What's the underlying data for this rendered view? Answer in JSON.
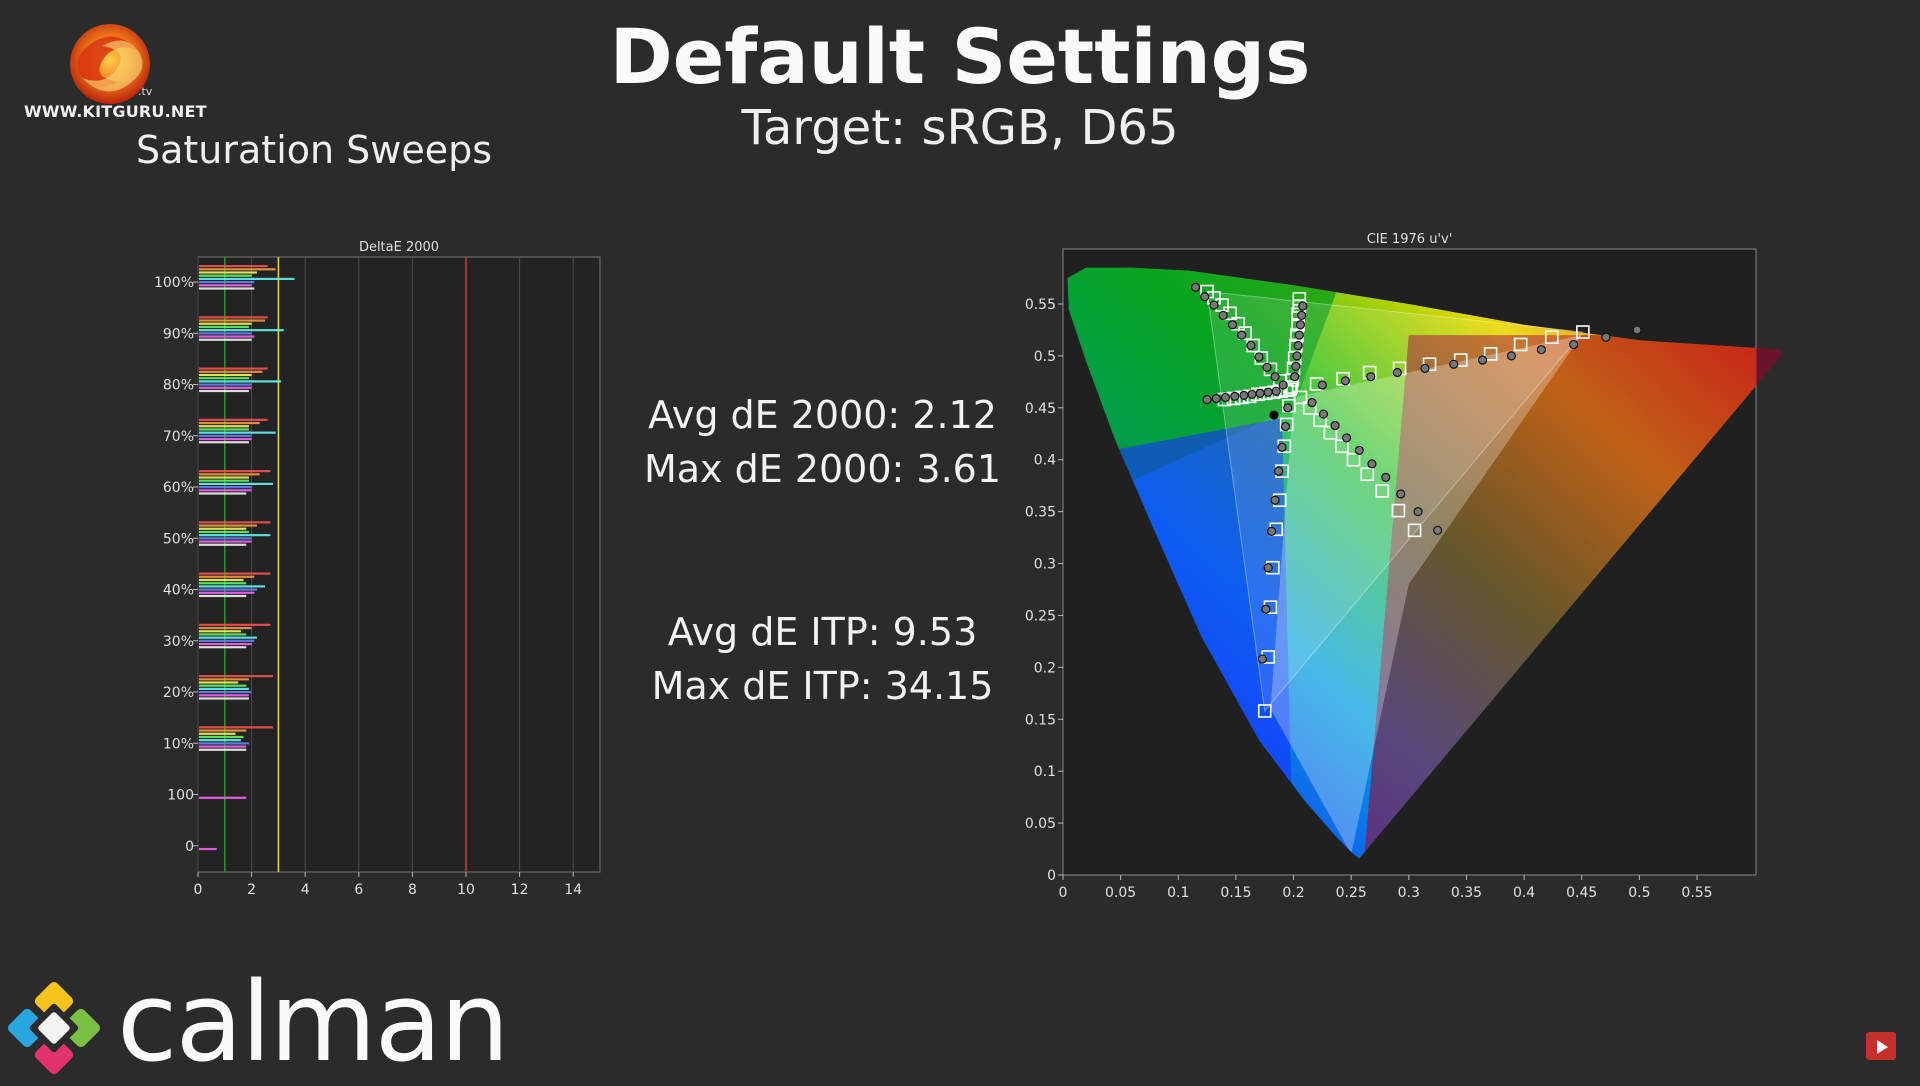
{
  "header": {
    "logo_text": "WWW.KITGURU.NET",
    "logo_suffix": ".tv",
    "section": "Saturation Sweeps",
    "title": "Default Settings",
    "subtitle": "Target: sRGB, D65"
  },
  "stats": {
    "avg_de2000": "Avg dE 2000: 2.12",
    "max_de2000": "Max dE 2000: 3.61",
    "avg_itp": "Avg dE ITP: 9.53",
    "max_itp": "Max dE ITP: 34.15"
  },
  "footer": {
    "brand": "calman"
  },
  "colors": {
    "background": "#2b2b2b",
    "threshold_green": "#2e8b2e",
    "threshold_yellow": "#e6d11e",
    "threshold_red": "#d4303a"
  },
  "chart_data": [
    {
      "type": "bar",
      "title": "DeltaE 2000",
      "orientation": "horizontal",
      "xlim": [
        0,
        15
      ],
      "xticks": [
        0,
        2,
        4,
        6,
        8,
        10,
        12,
        14
      ],
      "threshold_lines": [
        1,
        3,
        10
      ],
      "groups": [
        "100%",
        "90%",
        "80%",
        "70%",
        "60%",
        "50%",
        "40%",
        "30%",
        "20%",
        "10%",
        "100",
        "0"
      ],
      "series_colors": [
        "#ff5555",
        "#ffa040",
        "#ffff66",
        "#66ff66",
        "#66ffff",
        "#6688ff",
        "#ff66ff",
        "#ffffff"
      ],
      "values": [
        [
          2.6,
          2.9,
          2.2,
          2.0,
          3.6,
          2.1,
          2.0,
          2.1
        ],
        [
          2.6,
          2.5,
          2.0,
          1.9,
          3.2,
          2.0,
          2.1,
          2.0
        ],
        [
          2.6,
          2.4,
          2.0,
          1.9,
          3.1,
          2.0,
          2.0,
          1.9
        ],
        [
          2.6,
          2.3,
          1.9,
          1.9,
          2.9,
          2.0,
          2.0,
          1.9
        ],
        [
          2.7,
          2.3,
          1.9,
          1.9,
          2.8,
          2.0,
          2.0,
          1.8
        ],
        [
          2.7,
          2.2,
          1.8,
          1.9,
          2.7,
          2.0,
          2.0,
          1.8
        ],
        [
          2.7,
          2.1,
          1.7,
          1.8,
          2.5,
          2.2,
          2.1,
          1.8
        ],
        [
          2.7,
          2.0,
          1.6,
          1.8,
          2.2,
          2.1,
          2.0,
          1.8
        ],
        [
          2.8,
          1.9,
          1.5,
          1.8,
          1.9,
          2.0,
          1.9,
          1.9
        ],
        [
          2.8,
          1.8,
          1.4,
          1.7,
          1.6,
          1.9,
          1.8,
          1.8
        ],
        [
          0,
          0,
          0,
          0,
          0,
          0,
          1.8,
          0
        ],
        [
          0,
          0,
          0,
          0,
          0,
          0,
          0.7,
          0
        ]
      ]
    },
    {
      "type": "scatter",
      "title": "CIE 1976 u'v'",
      "xlim": [
        0,
        0.6
      ],
      "ylim": [
        0,
        0.6
      ],
      "xticks": [
        "0",
        "0.05",
        "0.1",
        "0.15",
        "0.2",
        "0.25",
        "0.3",
        "0.35",
        "0.4",
        "0.45",
        "0.5",
        "0.55"
      ],
      "yticks": [
        "0",
        "0.05",
        "0.1",
        "0.15",
        "0.2",
        "0.25",
        "0.3",
        "0.35",
        "0.4",
        "0.45",
        "0.5",
        "0.55"
      ],
      "gamut_triangle": [
        [
          0.451,
          0.523
        ],
        [
          0.125,
          0.562
        ],
        [
          0.175,
          0.158
        ]
      ],
      "white_point": [
        0.198,
        0.468
      ],
      "targets": [
        [
          0.451,
          0.523
        ],
        [
          0.424,
          0.518
        ],
        [
          0.397,
          0.511
        ],
        [
          0.371,
          0.502
        ],
        [
          0.345,
          0.496
        ],
        [
          0.318,
          0.492
        ],
        [
          0.292,
          0.488
        ],
        [
          0.266,
          0.484
        ],
        [
          0.243,
          0.478
        ],
        [
          0.22,
          0.473
        ],
        [
          0.125,
          0.562
        ],
        [
          0.131,
          0.556
        ],
        [
          0.138,
          0.549
        ],
        [
          0.145,
          0.541
        ],
        [
          0.152,
          0.531
        ],
        [
          0.158,
          0.522
        ],
        [
          0.165,
          0.51
        ],
        [
          0.172,
          0.498
        ],
        [
          0.18,
          0.487
        ],
        [
          0.188,
          0.476
        ],
        [
          0.175,
          0.158
        ],
        [
          0.178,
          0.21
        ],
        [
          0.18,
          0.258
        ],
        [
          0.182,
          0.296
        ],
        [
          0.185,
          0.333
        ],
        [
          0.188,
          0.361
        ],
        [
          0.19,
          0.389
        ],
        [
          0.192,
          0.413
        ],
        [
          0.194,
          0.434
        ],
        [
          0.196,
          0.452
        ],
        [
          0.205,
          0.555
        ],
        [
          0.205,
          0.548
        ],
        [
          0.204,
          0.54
        ],
        [
          0.204,
          0.53
        ],
        [
          0.203,
          0.52
        ],
        [
          0.202,
          0.51
        ],
        [
          0.201,
          0.498
        ],
        [
          0.2,
          0.488
        ],
        [
          0.199,
          0.477
        ],
        [
          0.198,
          0.47
        ],
        [
          0.14,
          0.458
        ],
        [
          0.148,
          0.459
        ],
        [
          0.155,
          0.46
        ],
        [
          0.162,
          0.461
        ],
        [
          0.169,
          0.463
        ],
        [
          0.176,
          0.464
        ],
        [
          0.183,
          0.465
        ],
        [
          0.189,
          0.466
        ],
        [
          0.194,
          0.467
        ],
        [
          0.197,
          0.468
        ],
        [
          0.305,
          0.332
        ],
        [
          0.291,
          0.351
        ],
        [
          0.277,
          0.37
        ],
        [
          0.264,
          0.386
        ],
        [
          0.252,
          0.4
        ],
        [
          0.242,
          0.413
        ],
        [
          0.232,
          0.426
        ],
        [
          0.223,
          0.438
        ],
        [
          0.214,
          0.45
        ],
        [
          0.206,
          0.46
        ]
      ],
      "measured": [
        [
          0.498,
          0.525
        ],
        [
          0.471,
          0.518
        ],
        [
          0.443,
          0.511
        ],
        [
          0.415,
          0.506
        ],
        [
          0.389,
          0.5
        ],
        [
          0.364,
          0.496
        ],
        [
          0.339,
          0.492
        ],
        [
          0.314,
          0.488
        ],
        [
          0.29,
          0.484
        ],
        [
          0.267,
          0.48
        ],
        [
          0.245,
          0.476
        ],
        [
          0.225,
          0.472
        ],
        [
          0.115,
          0.566
        ],
        [
          0.123,
          0.557
        ],
        [
          0.131,
          0.549
        ],
        [
          0.139,
          0.539
        ],
        [
          0.147,
          0.53
        ],
        [
          0.155,
          0.52
        ],
        [
          0.163,
          0.51
        ],
        [
          0.17,
          0.499
        ],
        [
          0.177,
          0.489
        ],
        [
          0.184,
          0.48
        ],
        [
          0.191,
          0.472
        ],
        [
          0.173,
          0.208
        ],
        [
          0.176,
          0.256
        ],
        [
          0.178,
          0.296
        ],
        [
          0.181,
          0.331
        ],
        [
          0.184,
          0.361
        ],
        [
          0.187,
          0.389
        ],
        [
          0.19,
          0.412
        ],
        [
          0.193,
          0.432
        ],
        [
          0.195,
          0.45
        ],
        [
          0.208,
          0.548
        ],
        [
          0.207,
          0.539
        ],
        [
          0.206,
          0.53
        ],
        [
          0.205,
          0.52
        ],
        [
          0.204,
          0.51
        ],
        [
          0.203,
          0.5
        ],
        [
          0.202,
          0.49
        ],
        [
          0.201,
          0.48
        ],
        [
          0.125,
          0.458
        ],
        [
          0.133,
          0.459
        ],
        [
          0.141,
          0.46
        ],
        [
          0.149,
          0.461
        ],
        [
          0.157,
          0.462
        ],
        [
          0.164,
          0.463
        ],
        [
          0.171,
          0.464
        ],
        [
          0.178,
          0.465
        ],
        [
          0.185,
          0.466
        ],
        [
          0.325,
          0.332
        ],
        [
          0.308,
          0.35
        ],
        [
          0.293,
          0.367
        ],
        [
          0.28,
          0.383
        ],
        [
          0.268,
          0.396
        ],
        [
          0.257,
          0.409
        ],
        [
          0.246,
          0.421
        ],
        [
          0.236,
          0.433
        ],
        [
          0.226,
          0.444
        ],
        [
          0.216,
          0.455
        ]
      ],
      "black_point": [
        0.183,
        0.443
      ]
    }
  ]
}
